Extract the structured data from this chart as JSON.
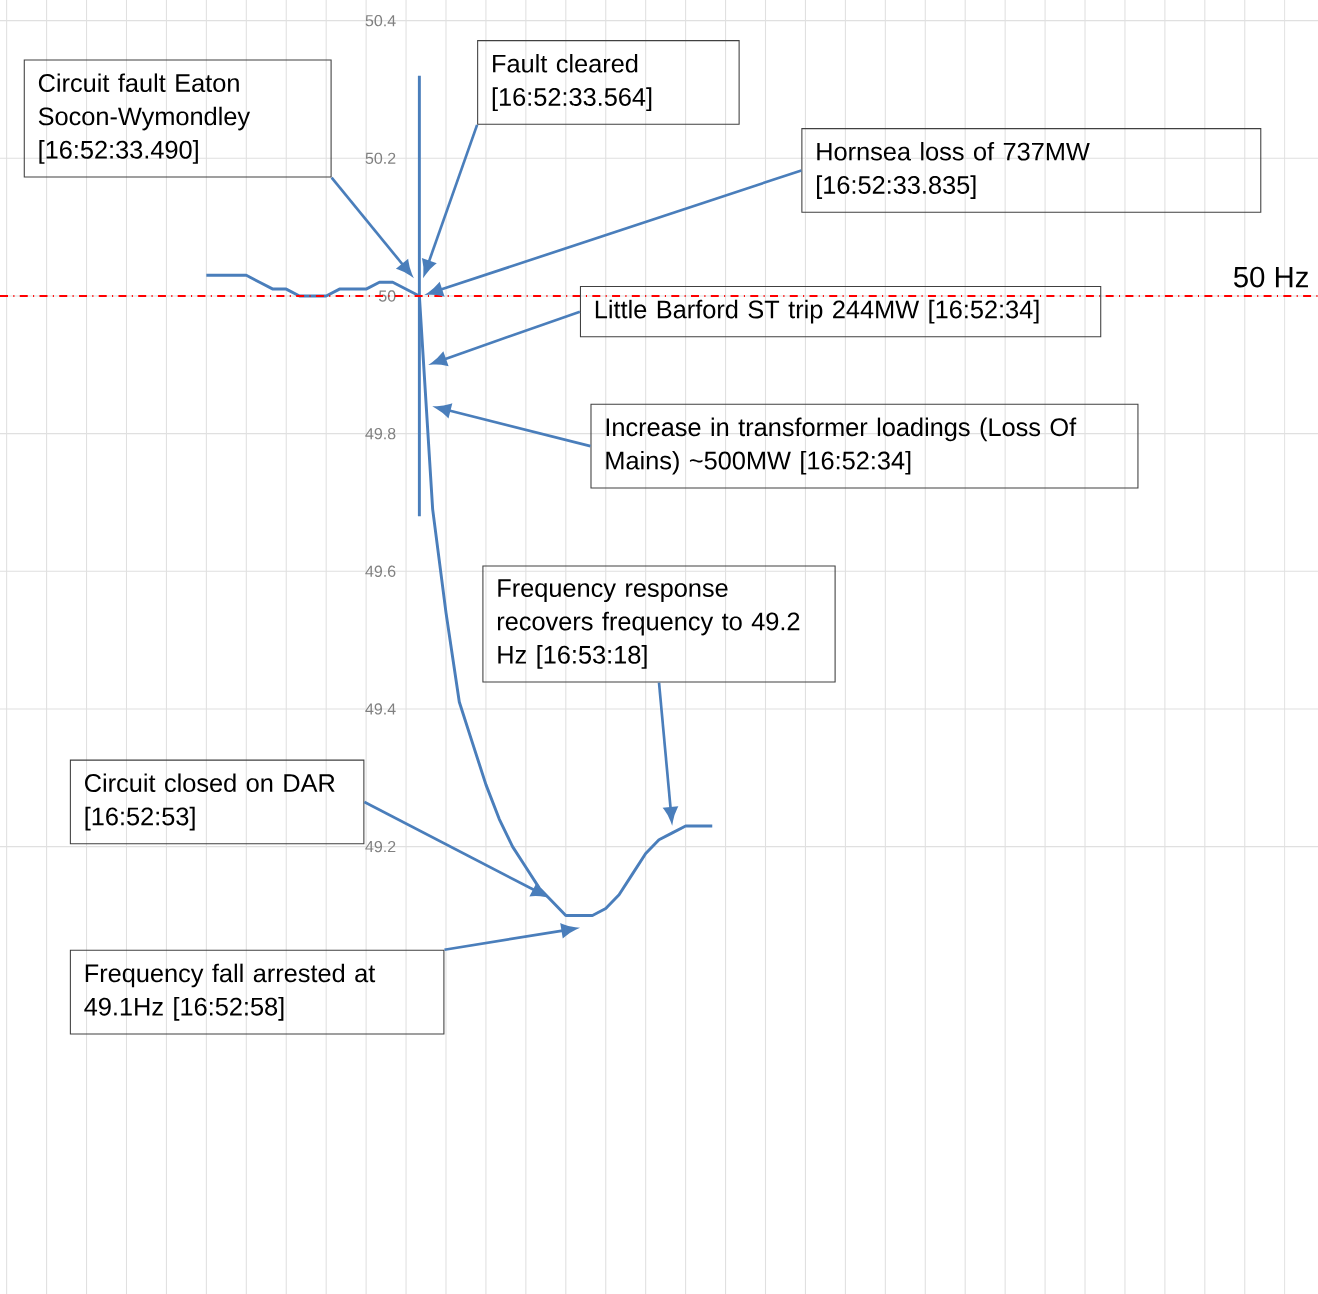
{
  "chart_data": {
    "type": "line",
    "categories": [
      null,
      null,
      null,
      null,
      null,
      null,
      null,
      null,
      null,
      null,
      null,
      null,
      null,
      null,
      null,
      null,
      null,
      null,
      null,
      null,
      null,
      null,
      null,
      null,
      null,
      null,
      null,
      null,
      null,
      null,
      null,
      null,
      null,
      null,
      null,
      null,
      null,
      null,
      null,
      null,
      null,
      null,
      null,
      null,
      null,
      null,
      null,
      null,
      null,
      null,
      null,
      null,
      null,
      null,
      null,
      null,
      null,
      null,
      null,
      null,
      null,
      null,
      null,
      null,
      null,
      null,
      null,
      null,
      null,
      null,
      null,
      null,
      null,
      null,
      null,
      null,
      null,
      null,
      null,
      null,
      null,
      null,
      null,
      null,
      null,
      null,
      null,
      null,
      null,
      null,
      null,
      null,
      null,
      null,
      null,
      null,
      null,
      null,
      null
    ],
    "ylim": [
      48.55,
      50.43
    ],
    "yticks": [
      49.2,
      49.4,
      49.6,
      49.8,
      50,
      50.2,
      50.4
    ],
    "grid": true,
    "marker": "none",
    "line_style": "solid",
    "series": [
      {
        "color": "#4a7ebb",
        "values": [
          null,
          null,
          null,
          null,
          null,
          null,
          null,
          null,
          null,
          null,
          null,
          null,
          null,
          null,
          null,
          50.03,
          50.03,
          50.03,
          50.03,
          50.02,
          50.01,
          50.01,
          50.0,
          50.0,
          50.0,
          50.01,
          50.01,
          50.01,
          50.02,
          50.02,
          50.01,
          50.0,
          49.69,
          49.54,
          49.41,
          49.35,
          49.29,
          49.24,
          49.2,
          49.17,
          49.14,
          49.12,
          49.1,
          49.1,
          49.1,
          49.11,
          49.13,
          49.16,
          49.19,
          49.21,
          49.22,
          49.23,
          49.23,
          49.23,
          null,
          null,
          null,
          null,
          null,
          null,
          null,
          null,
          null,
          null,
          null,
          null,
          null,
          null,
          null,
          null,
          null,
          null,
          null,
          null,
          null,
          null,
          null,
          null,
          null,
          null,
          null,
          null,
          null,
          null,
          null,
          null,
          null,
          null,
          null,
          null,
          null,
          null,
          null,
          null,
          null,
          null,
          null,
          null,
          null
        ],
        "errors": [
          null,
          null,
          null,
          null,
          null,
          null,
          null,
          null,
          null,
          null,
          null,
          null,
          null,
          null,
          null,
          null,
          null,
          null,
          null,
          null,
          null,
          null,
          null,
          null,
          null,
          null,
          null,
          null,
          null,
          null,
          null,
          [
            49.68,
            50.32
          ],
          null,
          null,
          null,
          null,
          null,
          null,
          null,
          null,
          null,
          null,
          null,
          null,
          null,
          null,
          null,
          null,
          null,
          null,
          null,
          null,
          null,
          null,
          null,
          null,
          null,
          null,
          null,
          null,
          null,
          null,
          null,
          null,
          null,
          null,
          null,
          null,
          null,
          null,
          null,
          null,
          null,
          null,
          null,
          null,
          null,
          null,
          null,
          null,
          null,
          null,
          null,
          null,
          null,
          null,
          null,
          null,
          null,
          null,
          null,
          null,
          null,
          null,
          null,
          null,
          null,
          null,
          null
        ]
      }
    ],
    "ref_lines": [
      {
        "axis": "y",
        "value": 50,
        "label": "50 Hz",
        "color": "#ff0000",
        "line_style": "dashdot"
      }
    ],
    "annotations": [
      "Circuit fault Eaton Socon-Wymondley [16:52:33.490]",
      "Fault cleared [16:52:33.564]",
      "Hornsea loss of 737MW [16:52:33.835]",
      "Little Barford ST trip 244MW [16:52:34]",
      "Increase in transformer loadings (Loss Of Mains) ~500MW [16:52:34]",
      "Frequency response recovers frequency to 49.2 Hz [16:53:18]",
      "Circuit closed on DAR [16:52:53]",
      "Frequency fall arrested at 49.1Hz [16:52:58]"
    ]
  }
}
